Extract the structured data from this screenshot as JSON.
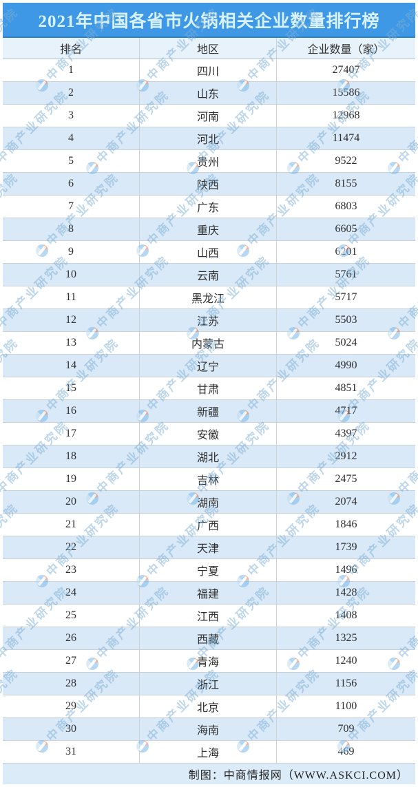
{
  "chart_data": {
    "type": "table",
    "title": "2021年中国各省市火锅相关企业数量排行榜",
    "columns": [
      "排名",
      "地区",
      "企业数量（家）"
    ],
    "categories": [
      "四川",
      "山东",
      "河南",
      "河北",
      "贵州",
      "陕西",
      "广东",
      "重庆",
      "山西",
      "云南",
      "黑龙江",
      "江苏",
      "内蒙古",
      "辽宁",
      "甘肃",
      "新疆",
      "安徽",
      "湖北",
      "吉林",
      "湖南",
      "广西",
      "天津",
      "宁夏",
      "福建",
      "江西",
      "西藏",
      "青海",
      "浙江",
      "北京",
      "海南",
      "上海"
    ],
    "values": [
      27407,
      15586,
      12968,
      11474,
      9522,
      8155,
      6803,
      6605,
      6201,
      5761,
      5717,
      5503,
      5024,
      4990,
      4851,
      4717,
      4397,
      2912,
      2475,
      2074,
      1846,
      1739,
      1496,
      1428,
      1408,
      1325,
      1240,
      1156,
      1100,
      709,
      469
    ],
    "rows": [
      [
        "1",
        "四川",
        "27407"
      ],
      [
        "2",
        "山东",
        "15586"
      ],
      [
        "3",
        "河南",
        "12968"
      ],
      [
        "4",
        "河北",
        "11474"
      ],
      [
        "5",
        "贵州",
        "9522"
      ],
      [
        "6",
        "陕西",
        "8155"
      ],
      [
        "7",
        "广东",
        "6803"
      ],
      [
        "8",
        "重庆",
        "6605"
      ],
      [
        "9",
        "山西",
        "6201"
      ],
      [
        "10",
        "云南",
        "5761"
      ],
      [
        "11",
        "黑龙江",
        "5717"
      ],
      [
        "12",
        "江苏",
        "5503"
      ],
      [
        "13",
        "内蒙古",
        "5024"
      ],
      [
        "14",
        "辽宁",
        "4990"
      ],
      [
        "15",
        "甘肃",
        "4851"
      ],
      [
        "16",
        "新疆",
        "4717"
      ],
      [
        "17",
        "安徽",
        "4397"
      ],
      [
        "18",
        "湖北",
        "2912"
      ],
      [
        "19",
        "吉林",
        "2475"
      ],
      [
        "20",
        "湖南",
        "2074"
      ],
      [
        "21",
        "广西",
        "1846"
      ],
      [
        "22",
        "天津",
        "1739"
      ],
      [
        "23",
        "宁夏",
        "1496"
      ],
      [
        "24",
        "福建",
        "1428"
      ],
      [
        "25",
        "江西",
        "1408"
      ],
      [
        "26",
        "西藏",
        "1325"
      ],
      [
        "27",
        "青海",
        "1240"
      ],
      [
        "28",
        "浙江",
        "1156"
      ],
      [
        "29",
        "北京",
        "1100"
      ],
      [
        "30",
        "海南",
        "709"
      ],
      [
        "31",
        "上海",
        "469"
      ]
    ],
    "layout_hints": {
      "stripe_alternating": true,
      "first_data_row_background": "white"
    }
  },
  "footer": {
    "credit": "制图：中商情报网（WWW.ASKCI.COM）"
  },
  "watermark": {
    "text": "中商产业研究院",
    "logo": "askci-pinwheel-logo"
  },
  "colors": {
    "banner_bg": "#3e98e5",
    "banner_edge": "#2d82c8",
    "banner_text": "#d8f2fc",
    "header_bg": "#e8f2fb",
    "stripe_bg": "#d9e9f7",
    "row_bg": "#ffffff",
    "footer_bg": "#dcebf8",
    "border": "#c9d0d6",
    "text": "#2f2f2f",
    "watermark": "#7daed6",
    "logo_blue": "#7db8e8",
    "logo_orange": "#e8703a"
  }
}
